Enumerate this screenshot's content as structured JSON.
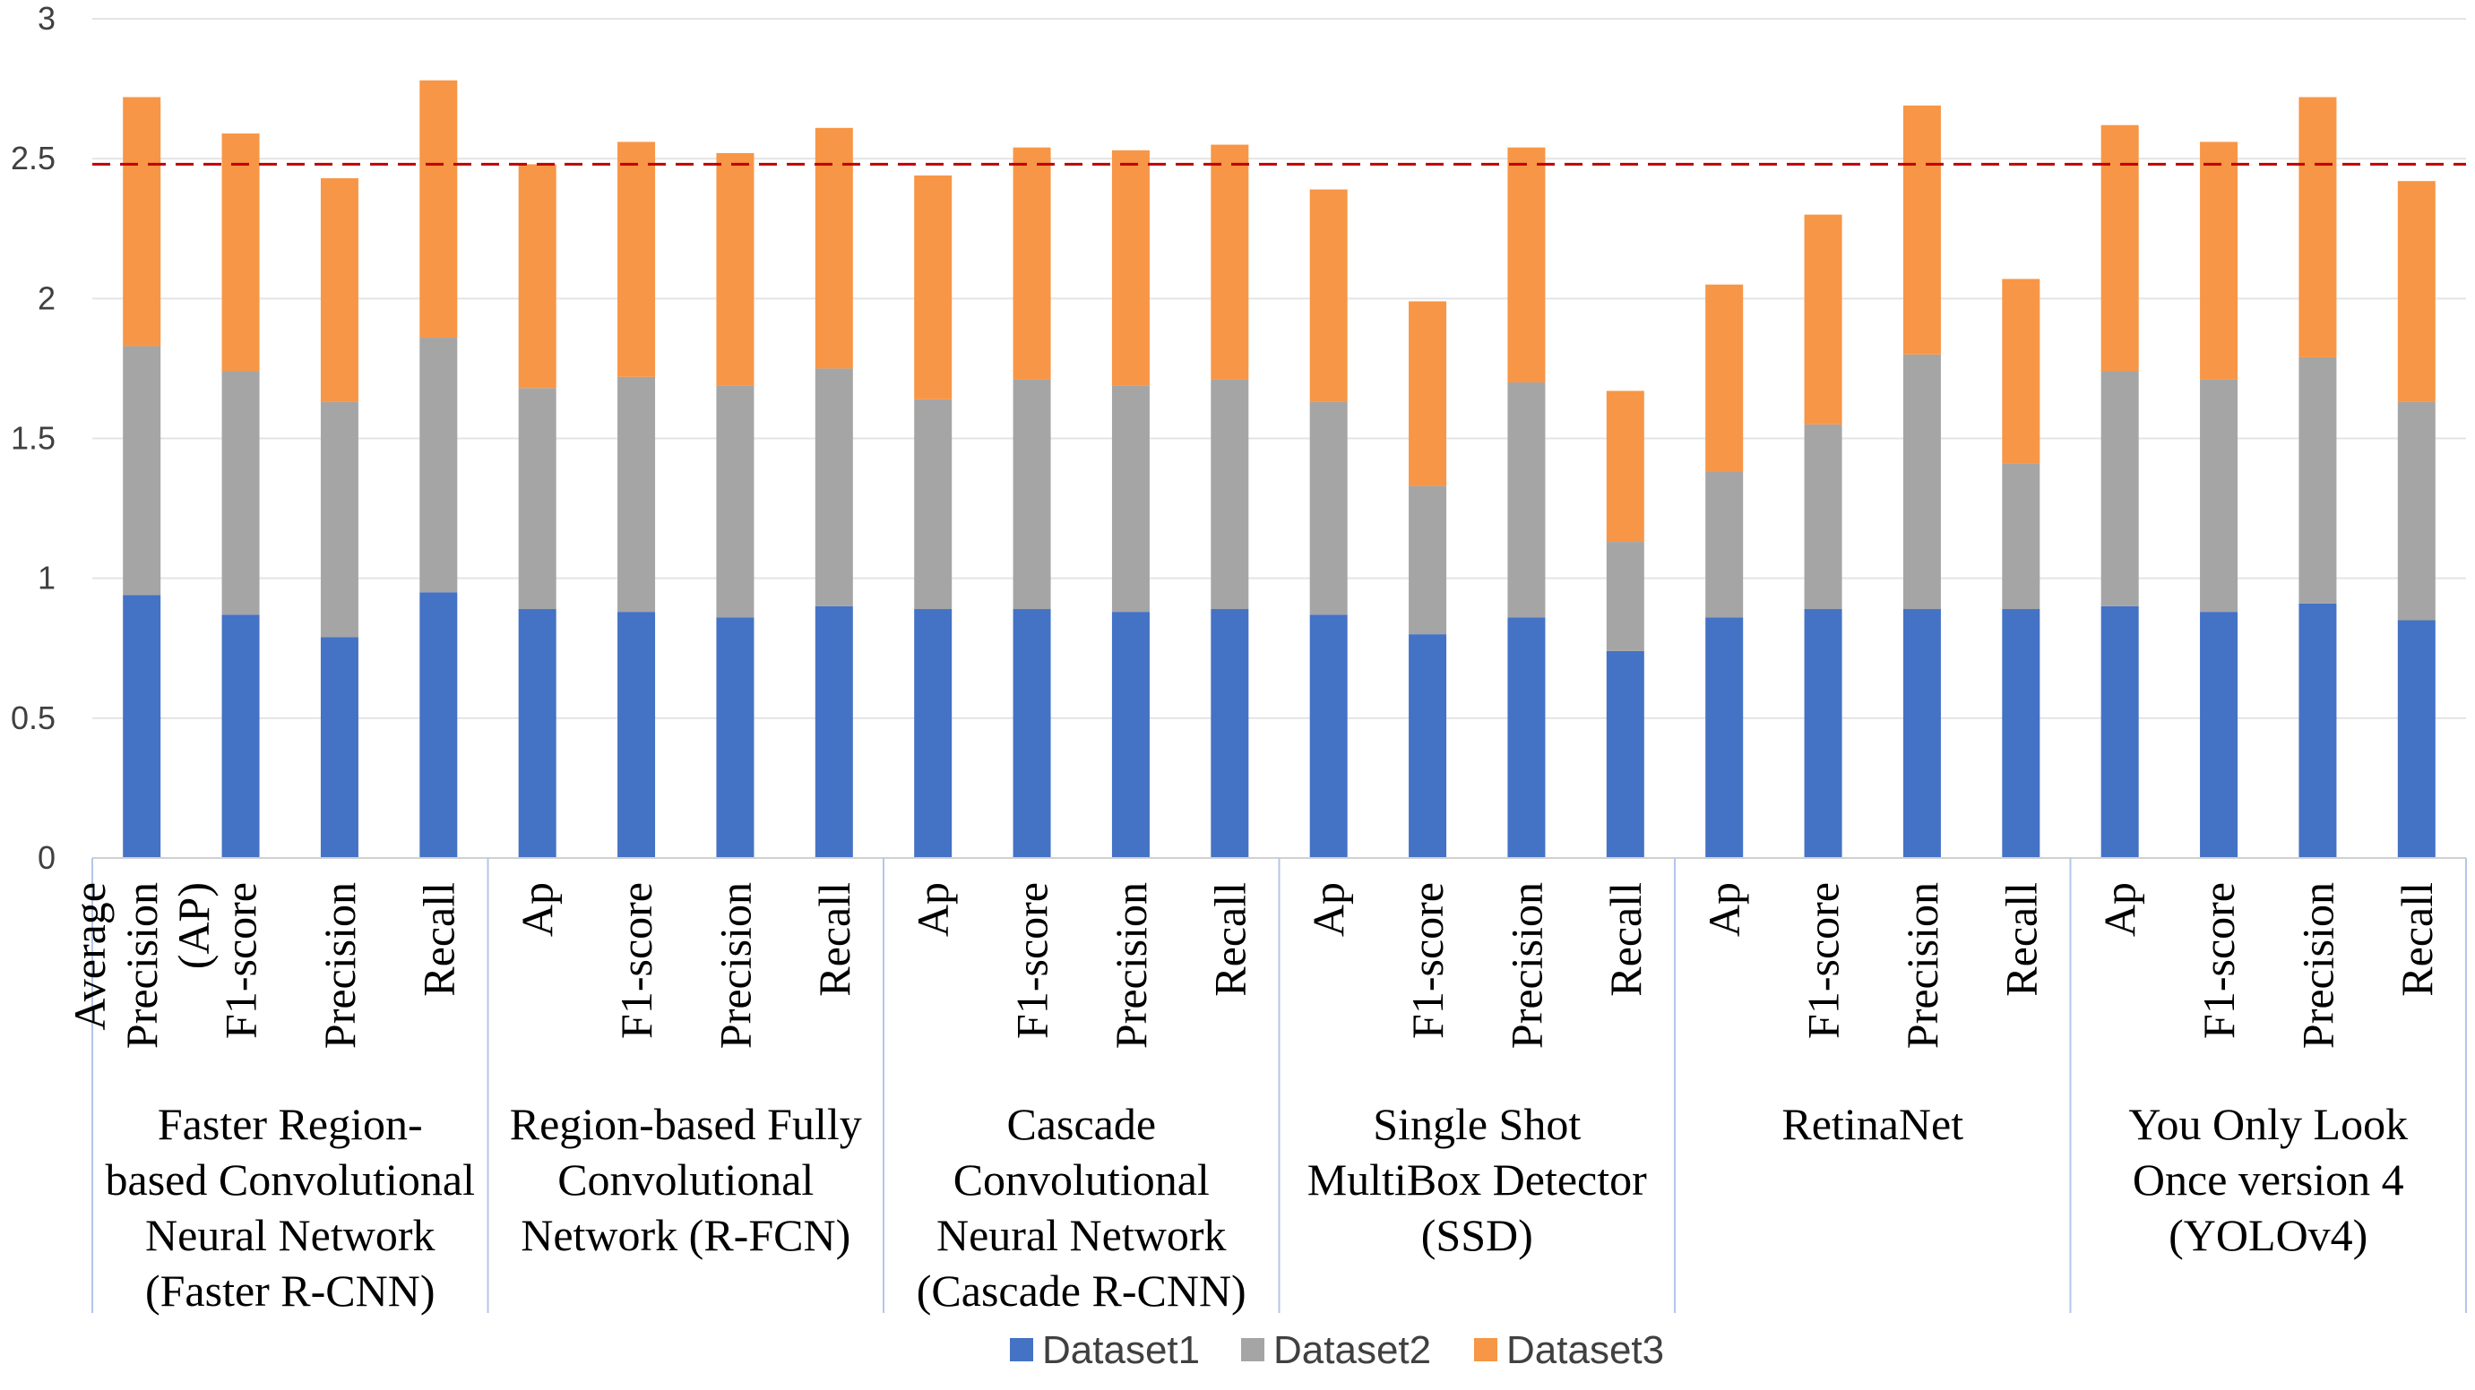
{
  "chart_data": {
    "type": "bar",
    "stacked": true,
    "title": "",
    "xlabel": "",
    "ylabel": "",
    "ylim": [
      0,
      3
    ],
    "yticks": [
      0,
      0.5,
      1,
      1.5,
      2,
      2.5,
      3
    ],
    "y_tick_labels": [
      "0",
      "0.5",
      "1",
      "1.5",
      "2",
      "2.5",
      "3"
    ],
    "grid": true,
    "legend_position": "bottom",
    "reference_line": 2.48,
    "groups": [
      {
        "label_lines": [
          "Faster Region-",
          "based Convolutional",
          "Neural Network",
          "(Faster R-CNN)"
        ],
        "categories": [
          [
            "Average",
            "Precision",
            "(AP)"
          ],
          [
            "F1-score"
          ],
          [
            "Precision"
          ],
          [
            "Recall"
          ]
        ]
      },
      {
        "label_lines": [
          "Region-based Fully",
          "Convolutional",
          "Network (R-FCN)"
        ],
        "categories": [
          [
            "Ap"
          ],
          [
            "F1-score"
          ],
          [
            "Precision"
          ],
          [
            "Recall"
          ]
        ]
      },
      {
        "label_lines": [
          "Cascade",
          "Convolutional",
          "Neural Network",
          "(Cascade R-CNN)"
        ],
        "categories": [
          [
            "Ap"
          ],
          [
            "F1-score"
          ],
          [
            "Precision"
          ],
          [
            "Recall"
          ]
        ]
      },
      {
        "label_lines": [
          "Single Shot",
          "MultiBox Detector",
          "(SSD)"
        ],
        "categories": [
          [
            "Ap"
          ],
          [
            "F1-score"
          ],
          [
            "Precision"
          ],
          [
            "Recall"
          ]
        ]
      },
      {
        "label_lines": [
          "RetinaNet"
        ],
        "categories": [
          [
            "Ap"
          ],
          [
            "F1-score"
          ],
          [
            "Precision"
          ],
          [
            "Recall"
          ]
        ]
      },
      {
        "label_lines": [
          "You Only Look",
          "Once version 4",
          "(YOLOv4)"
        ],
        "categories": [
          [
            "Ap"
          ],
          [
            "F1-score"
          ],
          [
            "Precision"
          ],
          [
            "Recall"
          ]
        ]
      }
    ],
    "series": [
      {
        "name": "Dataset1",
        "color": "#4472C4",
        "values": [
          0.94,
          0.87,
          0.79,
          0.95,
          0.89,
          0.88,
          0.86,
          0.9,
          0.89,
          0.89,
          0.88,
          0.89,
          0.87,
          0.8,
          0.86,
          0.74,
          0.86,
          0.89,
          0.89,
          0.89,
          0.9,
          0.88,
          0.91,
          0.85
        ]
      },
      {
        "name": "Dataset2",
        "color": "#A5A5A5",
        "values": [
          0.89,
          0.87,
          0.84,
          0.91,
          0.79,
          0.84,
          0.83,
          0.85,
          0.75,
          0.82,
          0.81,
          0.82,
          0.76,
          0.53,
          0.84,
          0.39,
          0.52,
          0.66,
          0.91,
          0.52,
          0.84,
          0.83,
          0.88,
          0.78
        ]
      },
      {
        "name": "Dataset3",
        "color": "#F79646",
        "values": [
          0.89,
          0.85,
          0.8,
          0.92,
          0.8,
          0.84,
          0.83,
          0.86,
          0.8,
          0.83,
          0.84,
          0.84,
          0.76,
          0.66,
          0.84,
          0.54,
          0.67,
          0.75,
          0.89,
          0.66,
          0.88,
          0.85,
          0.93,
          0.79
        ]
      }
    ]
  }
}
